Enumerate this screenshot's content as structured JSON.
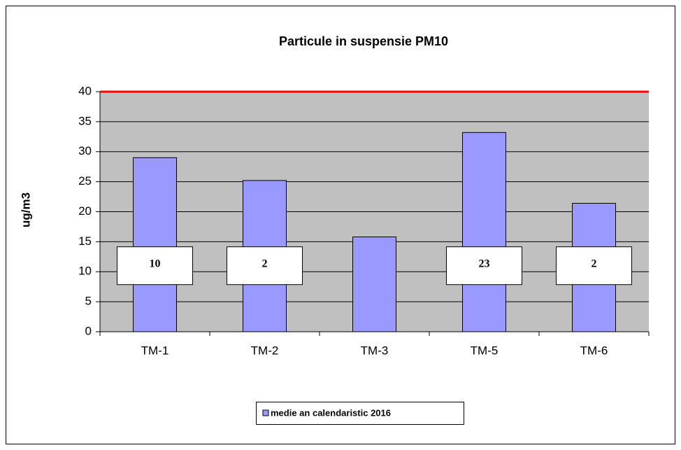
{
  "chart_data": {
    "type": "bar",
    "title": "Particule in suspensie  PM10",
    "y_label": "ug/m3",
    "categories": [
      "TM-1",
      "TM-2",
      "TM-3",
      "TM-5",
      "TM-6"
    ],
    "series": [
      {
        "name": "medie an calendaristic 2016",
        "color": "#9999ff",
        "values": [
          29,
          25.2,
          15.8,
          33.2,
          21.4
        ]
      }
    ],
    "annotations": [
      {
        "x": "TM-1",
        "text": "10"
      },
      {
        "x": "TM-2",
        "text": "2"
      },
      {
        "x": "TM-5",
        "text": "23"
      },
      {
        "x": "TM-6",
        "text": "2"
      }
    ],
    "limit": 40,
    "limit_color": "#ff0000",
    "ylim": [
      0,
      40
    ],
    "yticks": [
      0,
      5,
      10,
      15,
      20,
      25,
      30,
      35,
      40
    ],
    "grid": true,
    "plot_background": "#c0c0c0",
    "legend": "bottom"
  }
}
